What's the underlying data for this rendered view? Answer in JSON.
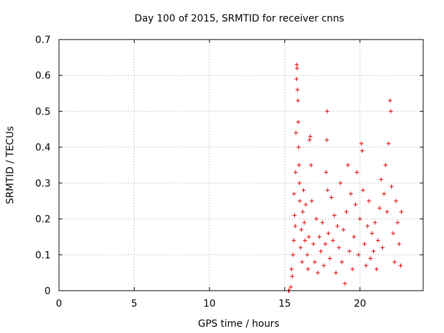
{
  "chart_data": {
    "type": "scatter",
    "title": "Day 100 of 2015, SRMTID for receiver cnns",
    "xlabel": "GPS time / hours",
    "ylabel": "SRMTID / TECUs",
    "xlim": [
      0,
      24.2
    ],
    "ylim": [
      0,
      0.7
    ],
    "xticks": [
      0,
      5,
      10,
      15,
      20
    ],
    "yticks": [
      0,
      0.1,
      0.2,
      0.3,
      0.4,
      0.5,
      0.6,
      0.7
    ],
    "ytick_labels": [
      "0",
      "0.1",
      "0.2",
      "0.3",
      "0.4",
      "0.5",
      "0.6",
      "0.7"
    ],
    "grid": true,
    "marker": "+",
    "color": "#e00000",
    "series": [
      {
        "name": "SRMTID",
        "points": [
          [
            15.25,
            0.0
          ],
          [
            15.3,
            0.0
          ],
          [
            15.4,
            0.01
          ],
          [
            15.45,
            0.06
          ],
          [
            15.5,
            0.04
          ],
          [
            15.55,
            0.1
          ],
          [
            15.6,
            0.14
          ],
          [
            15.62,
            0.27
          ],
          [
            15.65,
            0.21
          ],
          [
            15.7,
            0.18
          ],
          [
            15.72,
            0.33
          ],
          [
            15.75,
            0.44
          ],
          [
            15.78,
            0.59
          ],
          [
            15.8,
            0.63
          ],
          [
            15.82,
            0.62
          ],
          [
            15.85,
            0.56
          ],
          [
            15.88,
            0.53
          ],
          [
            15.9,
            0.47
          ],
          [
            15.92,
            0.4
          ],
          [
            15.95,
            0.35
          ],
          [
            15.98,
            0.3
          ],
          [
            16.0,
            0.25
          ],
          [
            16.05,
            0.12
          ],
          [
            16.1,
            0.17
          ],
          [
            16.15,
            0.08
          ],
          [
            16.2,
            0.22
          ],
          [
            16.25,
            0.28
          ],
          [
            16.3,
            0.19
          ],
          [
            16.35,
            0.14
          ],
          [
            16.4,
            0.24
          ],
          [
            16.5,
            0.1
          ],
          [
            16.55,
            0.06
          ],
          [
            16.6,
            0.15
          ],
          [
            16.65,
            0.42
          ],
          [
            16.7,
            0.43
          ],
          [
            16.75,
            0.35
          ],
          [
            16.8,
            0.25
          ],
          [
            16.9,
            0.13
          ],
          [
            17.0,
            0.08
          ],
          [
            17.1,
            0.2
          ],
          [
            17.2,
            0.05
          ],
          [
            17.3,
            0.15
          ],
          [
            17.4,
            0.11
          ],
          [
            17.5,
            0.19
          ],
          [
            17.6,
            0.07
          ],
          [
            17.7,
            0.13
          ],
          [
            17.75,
            0.33
          ],
          [
            17.8,
            0.42
          ],
          [
            17.82,
            0.5
          ],
          [
            17.85,
            0.28
          ],
          [
            17.9,
            0.16
          ],
          [
            18.0,
            0.09
          ],
          [
            18.1,
            0.26
          ],
          [
            18.2,
            0.14
          ],
          [
            18.3,
            0.21
          ],
          [
            18.4,
            0.05
          ],
          [
            18.5,
            0.18
          ],
          [
            18.6,
            0.12
          ],
          [
            18.7,
            0.3
          ],
          [
            18.8,
            0.08
          ],
          [
            18.9,
            0.17
          ],
          [
            19.0,
            0.02
          ],
          [
            19.1,
            0.22
          ],
          [
            19.2,
            0.35
          ],
          [
            19.3,
            0.11
          ],
          [
            19.4,
            0.27
          ],
          [
            19.5,
            0.06
          ],
          [
            19.6,
            0.15
          ],
          [
            19.7,
            0.24
          ],
          [
            19.8,
            0.33
          ],
          [
            19.9,
            0.1
          ],
          [
            20.0,
            0.2
          ],
          [
            20.1,
            0.41
          ],
          [
            20.15,
            0.39
          ],
          [
            20.2,
            0.28
          ],
          [
            20.3,
            0.13
          ],
          [
            20.4,
            0.07
          ],
          [
            20.5,
            0.18
          ],
          [
            20.6,
            0.25
          ],
          [
            20.7,
            0.09
          ],
          [
            20.8,
            0.16
          ],
          [
            20.9,
            0.11
          ],
          [
            21.0,
            0.19
          ],
          [
            21.1,
            0.06
          ],
          [
            21.2,
            0.14
          ],
          [
            21.3,
            0.23
          ],
          [
            21.4,
            0.31
          ],
          [
            21.5,
            0.12
          ],
          [
            21.6,
            0.27
          ],
          [
            21.7,
            0.35
          ],
          [
            21.8,
            0.22
          ],
          [
            21.9,
            0.41
          ],
          [
            22.0,
            0.53
          ],
          [
            22.05,
            0.5
          ],
          [
            22.1,
            0.29
          ],
          [
            22.2,
            0.16
          ],
          [
            22.3,
            0.08
          ],
          [
            22.4,
            0.25
          ],
          [
            22.5,
            0.19
          ],
          [
            22.6,
            0.13
          ],
          [
            22.7,
            0.07
          ],
          [
            22.75,
            0.22
          ]
        ]
      }
    ]
  }
}
